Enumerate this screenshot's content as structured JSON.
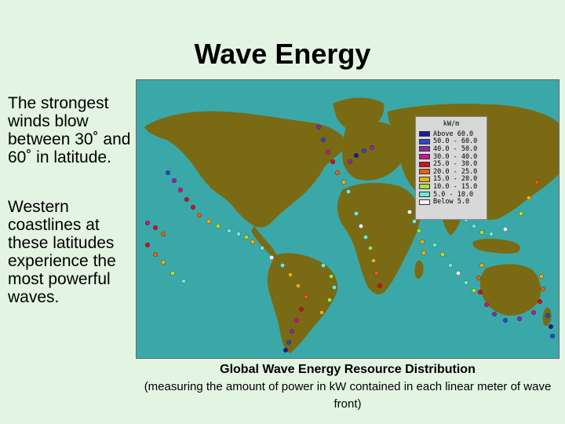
{
  "title": "Wave Energy",
  "paragraphs": [
    "The strongest winds blow between 30˚ and 60˚ in latitude.",
    "Western coastlines at these latitudes experience the most powerful waves."
  ],
  "map": {
    "legend": {
      "title": "kW/m",
      "rows": [
        {
          "label": "Above 60.0",
          "color": "#1a1a9c"
        },
        {
          "label": "50.0 - 60.0",
          "color": "#2c48c8"
        },
        {
          "label": "40.0 - 50.0",
          "color": "#8a2aa8"
        },
        {
          "label": "30.0 - 40.0",
          "color": "#c8148a"
        },
        {
          "label": "25.0 - 30.0",
          "color": "#d01020"
        },
        {
          "label": "20.0 - 25.0",
          "color": "#e86010"
        },
        {
          "label": "15.0 - 20.0",
          "color": "#e8b010"
        },
        {
          "label": "10.0 - 15.0",
          "color": "#a8e040"
        },
        {
          "label": " 5.0 - 10.0",
          "color": "#70e8d8"
        },
        {
          "label": "Below  5.0",
          "color": "#f4f4f4"
        }
      ]
    },
    "colors": {
      "ocean": "#3aa8a8",
      "land": "#7a6a14"
    }
  },
  "caption": {
    "line1": "Global Wave Energy Resource Distribution",
    "line2": "(measuring the amount of power in kW contained in each linear meter of wave front)"
  }
}
